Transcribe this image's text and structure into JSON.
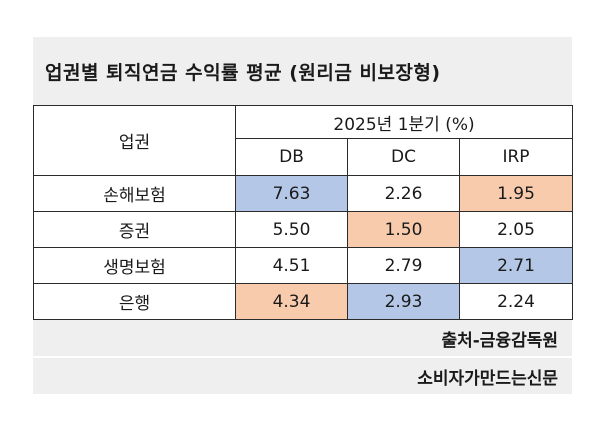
{
  "title": "업권별 퇴직연금 수익률 평균 (원리금 비보장형)",
  "table": {
    "row_header_label": "업권",
    "period_label": "2025년 1분기 (%)",
    "columns": [
      "DB",
      "DC",
      "IRP"
    ],
    "rows": [
      {
        "sector": "손해보험",
        "values": [
          "7.63",
          "2.26",
          "1.95"
        ],
        "highlights": [
          "blue",
          "",
          "peach"
        ]
      },
      {
        "sector": "증권",
        "values": [
          "5.50",
          "1.50",
          "2.05"
        ],
        "highlights": [
          "",
          "peach",
          ""
        ]
      },
      {
        "sector": "생명보험",
        "values": [
          "4.51",
          "2.79",
          "2.71"
        ],
        "highlights": [
          "",
          "",
          "blue"
        ]
      },
      {
        "sector": "은행",
        "values": [
          "4.34",
          "2.93",
          "2.24"
        ],
        "highlights": [
          "peach",
          "blue",
          ""
        ]
      }
    ],
    "highlight_colors": {
      "blue": "#b4c7e7",
      "peach": "#f8cbad"
    }
  },
  "source": "출처-금융감독원",
  "publisher": "소비자가만드는신문"
}
